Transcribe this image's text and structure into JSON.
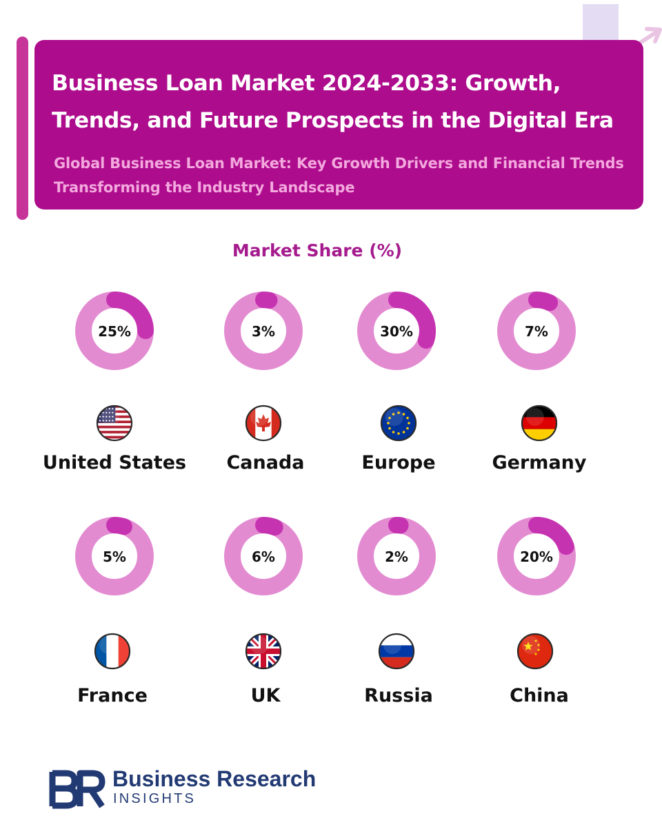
{
  "banner": {
    "title": "Business Loan Market 2024-2033: Growth, Trends, and Future Prospects in the Digital Era",
    "subtitle": "Global Business Loan Market: Key Growth Drivers and Financial Trends Transforming the Industry Landscape"
  },
  "colors": {
    "banner": "#ad0c8c",
    "side_bar": "#c6349a",
    "ring_track": "#e38bd1",
    "ring_value": "#c633b1",
    "chart_title": "#a51b8e",
    "brand_text": "#223a73"
  },
  "chart_data": {
    "type": "donut-grid",
    "title": "Market Share (%)",
    "unit": "%",
    "categories": [
      "United States",
      "Canada",
      "Europe",
      "Germany",
      "France",
      "UK",
      "Russia",
      "China"
    ],
    "values": [
      25,
      3,
      30,
      7,
      5,
      6,
      2,
      20
    ],
    "labels": [
      "25%",
      "3%",
      "30%",
      "7%",
      "5%",
      "6%",
      "2%",
      "20%"
    ],
    "icons": [
      "flag-us-icon",
      "flag-ca-icon",
      "flag-eu-icon",
      "flag-de-icon",
      "flag-fr-icon",
      "flag-uk-icon",
      "flag-ru-icon",
      "flag-cn-icon"
    ]
  },
  "brand": {
    "name": "Business Research",
    "sub": "INSIGHTS"
  }
}
